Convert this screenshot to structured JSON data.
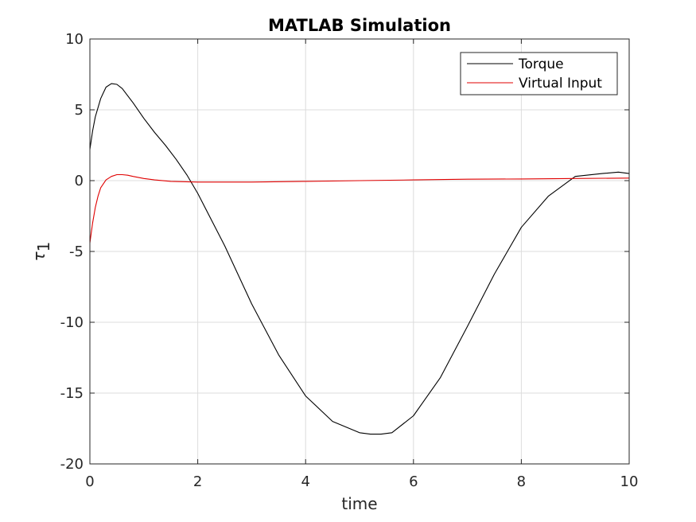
{
  "chart_data": {
    "type": "line",
    "title": "MATLAB Simulation",
    "xlabel": "time",
    "ylabel_symbol": "τ",
    "ylabel_subscript": "1",
    "xlim": [
      0,
      10
    ],
    "ylim": [
      -20,
      10
    ],
    "xticks": [
      0,
      2,
      4,
      6,
      8,
      10
    ],
    "yticks": [
      -20,
      -15,
      -10,
      -5,
      0,
      5,
      10
    ],
    "xtick_labels": [
      "0",
      "2",
      "4",
      "6",
      "8",
      "10"
    ],
    "ytick_labels": [
      "-20",
      "-15",
      "-10",
      "-5",
      "0",
      "5",
      "10"
    ],
    "grid": true,
    "legend_position": "top-right",
    "series": [
      {
        "name": "Torque",
        "color": "#000000",
        "x": [
          0,
          0.05,
          0.1,
          0.2,
          0.3,
          0.4,
          0.5,
          0.6,
          0.8,
          1.0,
          1.2,
          1.4,
          1.6,
          1.8,
          2.0,
          2.5,
          3.0,
          3.5,
          4.0,
          4.5,
          5.0,
          5.2,
          5.4,
          5.6,
          6.0,
          6.5,
          7.0,
          7.5,
          8.0,
          8.5,
          9.0,
          9.5,
          9.8,
          10.0
        ],
        "y": [
          2.2,
          3.5,
          4.5,
          5.8,
          6.6,
          6.85,
          6.8,
          6.5,
          5.5,
          4.4,
          3.4,
          2.5,
          1.5,
          0.4,
          -0.9,
          -4.6,
          -8.7,
          -12.3,
          -15.2,
          -17.0,
          -17.8,
          -17.9,
          -17.9,
          -17.8,
          -16.6,
          -13.9,
          -10.3,
          -6.6,
          -3.3,
          -1.1,
          0.3,
          0.5,
          0.6,
          0.5
        ]
      },
      {
        "name": "Virtual Input",
        "color": "#e00000",
        "x": [
          0,
          0.05,
          0.1,
          0.15,
          0.2,
          0.3,
          0.4,
          0.5,
          0.6,
          0.7,
          0.8,
          1.0,
          1.2,
          1.5,
          2.0,
          3.0,
          4.0,
          5.0,
          6.0,
          7.0,
          8.0,
          9.0,
          10.0
        ],
        "y": [
          -4.4,
          -3.0,
          -1.9,
          -1.1,
          -0.5,
          0.05,
          0.3,
          0.42,
          0.42,
          0.38,
          0.3,
          0.15,
          0.05,
          -0.05,
          -0.1,
          -0.1,
          -0.05,
          0.0,
          0.05,
          0.1,
          0.12,
          0.15,
          0.18
        ]
      }
    ]
  }
}
